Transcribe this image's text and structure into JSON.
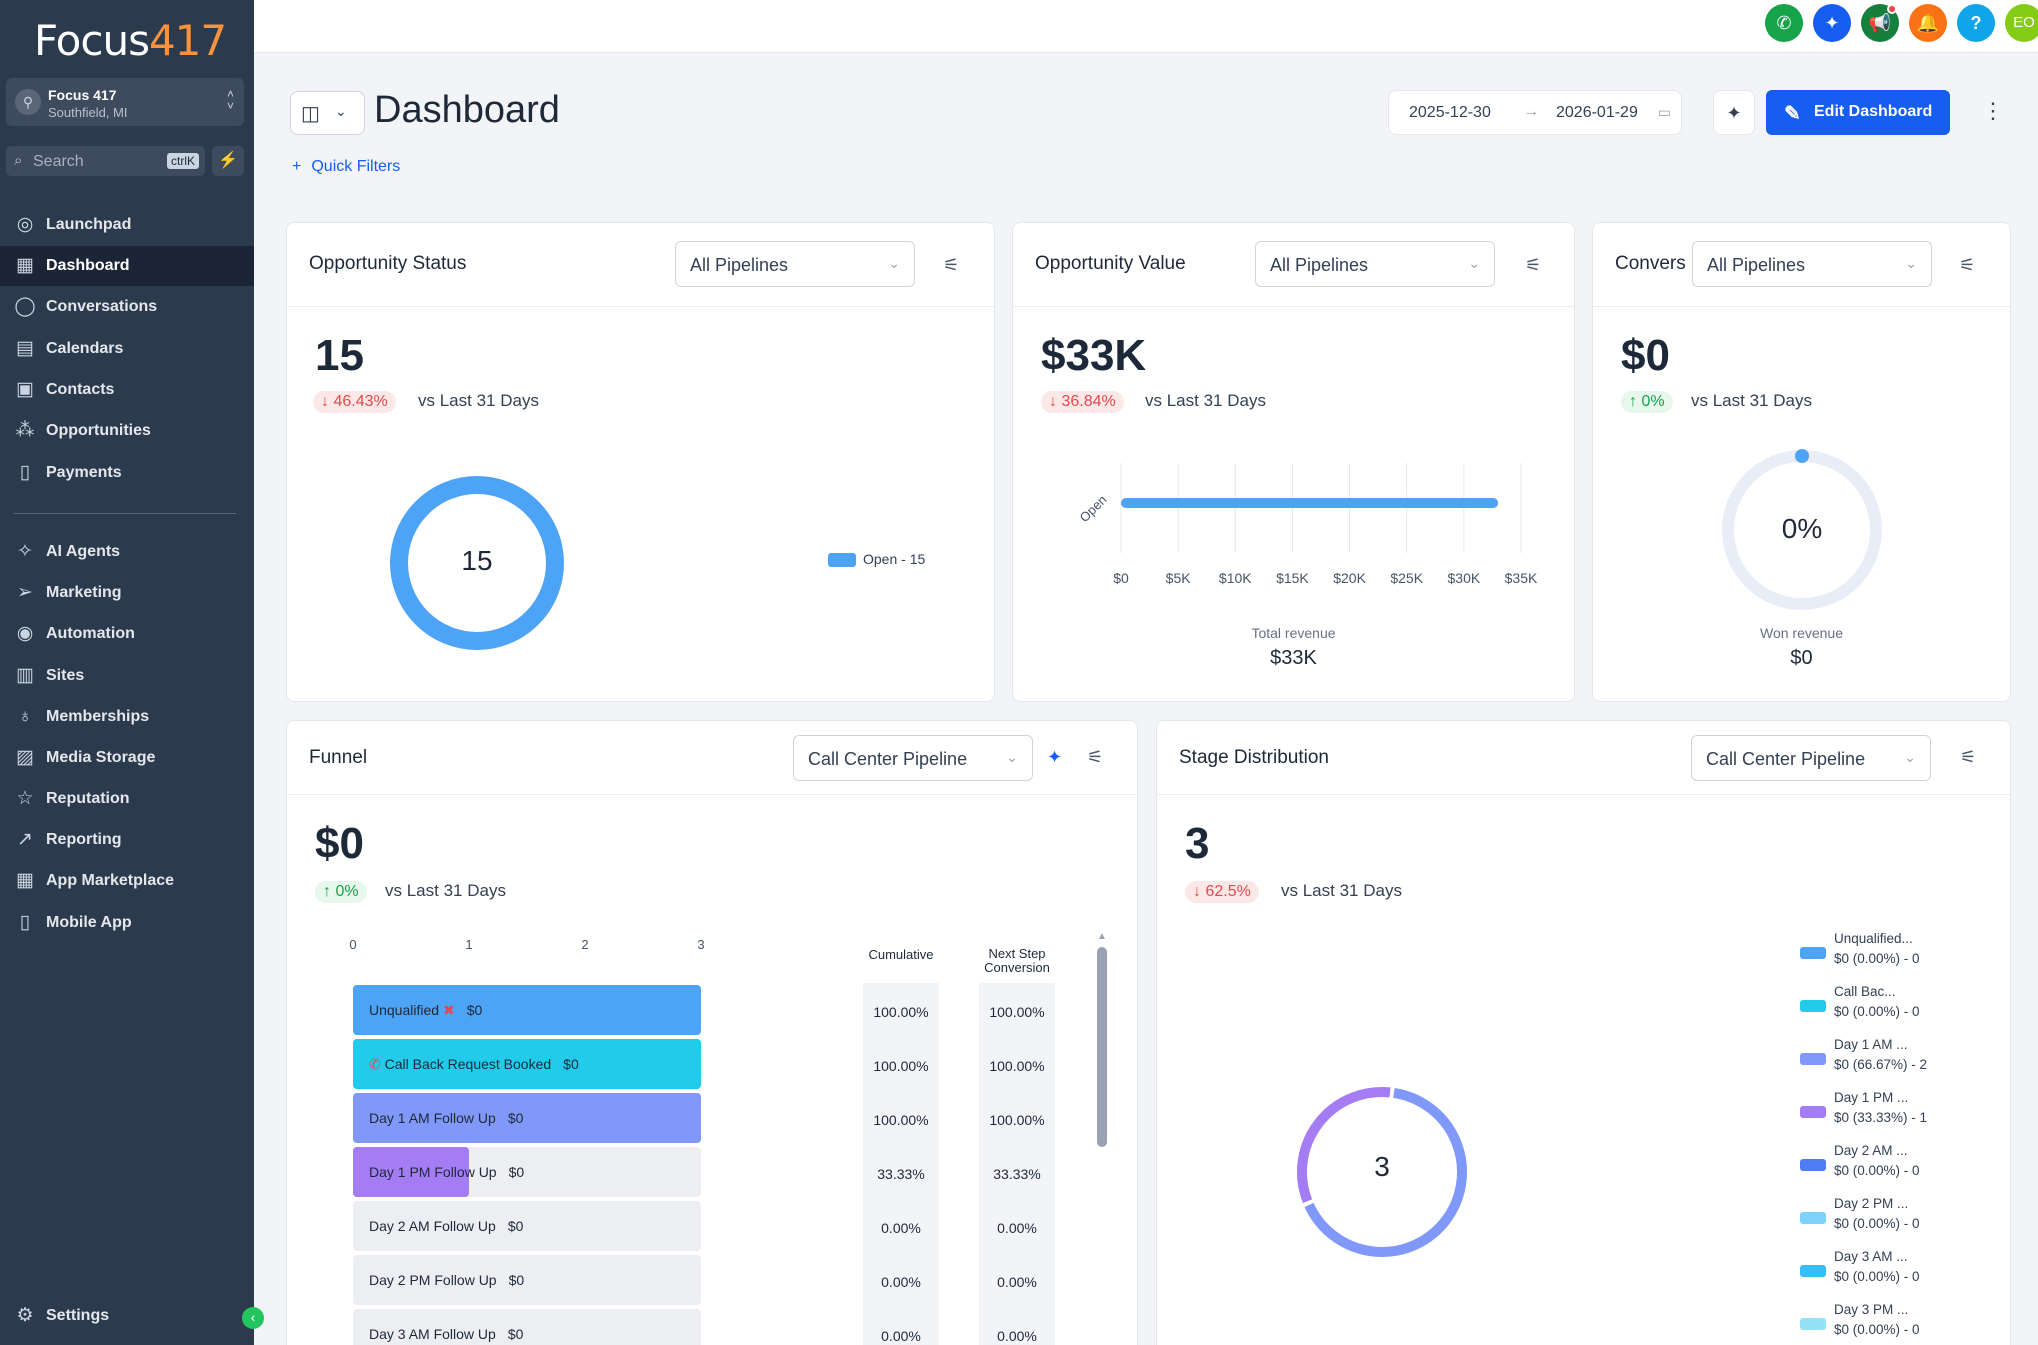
{
  "sidebar": {
    "logo_text": "Focus",
    "logo_num": "417",
    "location_name": "Focus 417",
    "location_sub": "Southfield, MI",
    "search_placeholder": "Search",
    "search_shortcut": "ctrlK",
    "items": [
      {
        "label": "Launchpad",
        "icon": "rocket-icon"
      },
      {
        "label": "Dashboard",
        "icon": "grid-icon",
        "active": true
      },
      {
        "label": "Conversations",
        "icon": "chat-icon"
      },
      {
        "label": "Calendars",
        "icon": "calendar-icon"
      },
      {
        "label": "Contacts",
        "icon": "contacts-icon"
      },
      {
        "label": "Opportunities",
        "icon": "opportunities-icon"
      },
      {
        "label": "Payments",
        "icon": "receipt-icon"
      },
      {
        "label": "AI Agents",
        "icon": "sparkle-icon"
      },
      {
        "label": "Marketing",
        "icon": "send-icon"
      },
      {
        "label": "Automation",
        "icon": "automation-icon"
      },
      {
        "label": "Sites",
        "icon": "sites-icon"
      },
      {
        "label": "Memberships",
        "icon": "award-icon"
      },
      {
        "label": "Media Storage",
        "icon": "image-icon"
      },
      {
        "label": "Reputation",
        "icon": "star-icon"
      },
      {
        "label": "Reporting",
        "icon": "trend-icon"
      },
      {
        "label": "App Marketplace",
        "icon": "apps-icon"
      },
      {
        "label": "Mobile App",
        "icon": "mobile-icon"
      }
    ],
    "settings_label": "Settings"
  },
  "topbar": {
    "avatar_initials": "EO",
    "colors": {
      "phone": "#16a34a",
      "magic": "#155eef",
      "announce": "#15803d",
      "bell": "#f97316",
      "help": "#0ea5e9",
      "avatar": "#84cc16"
    }
  },
  "header": {
    "title": "Dashboard",
    "quick_filters": "Quick Filters",
    "date_from": "2025-12-30",
    "date_to": "2026-01-29",
    "edit_label": "Edit Dashboard"
  },
  "opportunity_status": {
    "title": "Opportunity Status",
    "filter": "All Pipelines",
    "value": "15",
    "change": "46.43%",
    "vs": "vs Last 31 Days",
    "center": "15",
    "legend": "Open - 15",
    "color": "#4da3f5"
  },
  "opportunity_value": {
    "title": "Opportunity Value",
    "filter": "All Pipelines",
    "value": "$33K",
    "change": "36.84%",
    "vs": "vs Last 31 Days",
    "bar_label": "Open",
    "total_label": "Total revenue",
    "total_value": "$33K",
    "chart_data": {
      "type": "bar",
      "orientation": "horizontal",
      "categories": [
        "Open"
      ],
      "values": [
        33000
      ],
      "xlim": [
        0,
        35000
      ],
      "x_ticks": [
        "$0",
        "$5K",
        "$10K",
        "$15K",
        "$20K",
        "$25K",
        "$30K",
        "$35K"
      ]
    }
  },
  "conversion": {
    "title": "Conversion",
    "filter": "All Pipelines",
    "value": "$0",
    "change": "0%",
    "vs": "vs Last 31 Days",
    "center": "0%",
    "won_label": "Won revenue",
    "won_value": "$0"
  },
  "funnel": {
    "title": "Funnel",
    "filter": "Call Center Pipeline",
    "value": "$0",
    "change": "0%",
    "vs": "vs Last 31 Days",
    "axis": [
      "0",
      "1",
      "2",
      "3"
    ],
    "cumulative_label": "Cumulative",
    "next_step_label_1": "Next Step",
    "next_step_label_2": "Conversion",
    "chart_data": {
      "type": "bar",
      "orientation": "horizontal",
      "xlim": [
        0,
        3
      ],
      "rows": [
        {
          "stage": "Unqualified",
          "value": 3,
          "amount": "$0",
          "cumulative": "100.00%",
          "next": "100.00%",
          "color": "#4da3f5",
          "icon": "x"
        },
        {
          "stage": "Call Back Request Booked",
          "value": 3,
          "amount": "$0",
          "cumulative": "100.00%",
          "next": "100.00%",
          "color": "#22cbea",
          "icon": "phone"
        },
        {
          "stage": "Day 1  AM Follow Up",
          "value": 3,
          "amount": "$0",
          "cumulative": "100.00%",
          "next": "100.00%",
          "color": "#8098f9",
          "icon": ""
        },
        {
          "stage": "Day 1  PM Follow Up",
          "value": 1,
          "amount": "$0",
          "cumulative": "33.33%",
          "next": "33.33%",
          "color": "#a47cf3",
          "icon": ""
        },
        {
          "stage": "Day 2  AM Follow Up",
          "value": 0,
          "amount": "$0",
          "cumulative": "0.00%",
          "next": "0.00%",
          "color": "#4d7cf5",
          "icon": ""
        },
        {
          "stage": "Day 2  PM Follow Up",
          "value": 0,
          "amount": "$0",
          "cumulative": "0.00%",
          "next": "0.00%",
          "color": "#7dd3fc",
          "icon": ""
        },
        {
          "stage": "Day 3  AM Follow Up",
          "value": 0,
          "amount": "$0",
          "cumulative": "0.00%",
          "next": "0.00%",
          "color": "#38bdf8",
          "icon": ""
        }
      ]
    }
  },
  "stage_distribution": {
    "title": "Stage Distribution",
    "filter": "Call Center Pipeline",
    "value": "3",
    "change": "62.5%",
    "vs": "vs Last 31 Days",
    "center": "3",
    "chart_data": {
      "type": "pie",
      "variant": "donut",
      "slices": [
        {
          "label": "Unqualified...",
          "detail": "$0 (0.00%) - 0",
          "value": 0,
          "color": "#4da3f5"
        },
        {
          "label": "Call Bac...",
          "detail": "$0 (0.00%) - 0",
          "value": 0,
          "color": "#22cbea"
        },
        {
          "label": "Day 1   AM ...",
          "detail": "$0 (66.67%) - 2",
          "value": 2,
          "color": "#8098f9"
        },
        {
          "label": "Day 1   PM ...",
          "detail": "$0 (33.33%) - 1",
          "value": 1,
          "color": "#a47cf3"
        },
        {
          "label": "Day 2   AM ...",
          "detail": "$0 (0.00%) - 0",
          "value": 0,
          "color": "#4d7cf5"
        },
        {
          "label": "Day 2   PM ...",
          "detail": "$0 (0.00%) - 0",
          "value": 0,
          "color": "#7dd3fc"
        },
        {
          "label": "Day 3   AM ...",
          "detail": "$0 (0.00%) - 0",
          "value": 0,
          "color": "#38bdf8"
        },
        {
          "label": "Day 3   PM ...",
          "detail": "$0 (0.00%) - 0",
          "value": 0,
          "color": "#93e2f5"
        }
      ]
    }
  }
}
